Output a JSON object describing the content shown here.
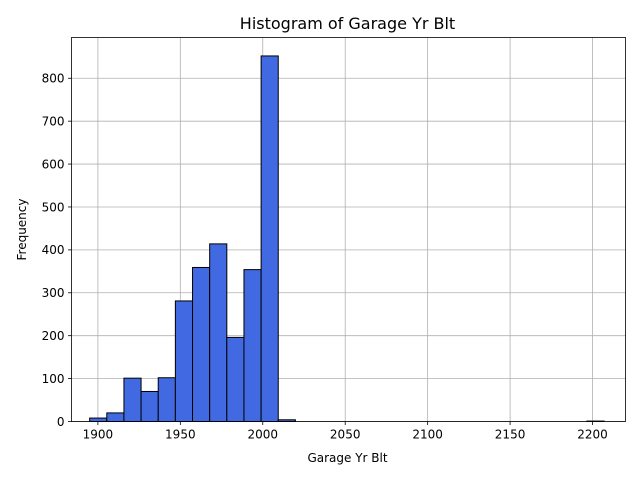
{
  "chart_data": {
    "type": "bar",
    "title": "Histogram of Garage Yr Blt",
    "xlabel": "Garage Yr Blt",
    "ylabel": "Frequency",
    "xlim": [
      1884,
      2220
    ],
    "ylim": [
      0,
      895
    ],
    "xticks": [
      1900,
      1950,
      2000,
      2050,
      2100,
      2150,
      2200
    ],
    "yticks": [
      0,
      100,
      200,
      300,
      400,
      500,
      600,
      700,
      800
    ],
    "grid": true,
    "bar_color": "#4169e1",
    "edge_color": "#000000",
    "bins": [
      {
        "x0": 1895.0,
        "x1": 1905.4,
        "count": 8
      },
      {
        "x0": 1905.4,
        "x1": 1915.8,
        "count": 20
      },
      {
        "x0": 1915.8,
        "x1": 1926.2,
        "count": 101
      },
      {
        "x0": 1926.2,
        "x1": 1936.6,
        "count": 70
      },
      {
        "x0": 1936.6,
        "x1": 1947.0,
        "count": 102
      },
      {
        "x0": 1947.0,
        "x1": 1957.4,
        "count": 281
      },
      {
        "x0": 1957.4,
        "x1": 1967.8,
        "count": 359
      },
      {
        "x0": 1967.8,
        "x1": 1978.2,
        "count": 414
      },
      {
        "x0": 1978.2,
        "x1": 1988.6,
        "count": 196
      },
      {
        "x0": 1988.6,
        "x1": 1999.0,
        "count": 354
      },
      {
        "x0": 1999.0,
        "x1": 2009.4,
        "count": 852
      },
      {
        "x0": 2009.4,
        "x1": 2019.8,
        "count": 4
      },
      {
        "x0": 2019.8,
        "x1": 2030.2,
        "count": 0
      },
      {
        "x0": 2030.2,
        "x1": 2040.6,
        "count": 0
      },
      {
        "x0": 2040.6,
        "x1": 2051.0,
        "count": 0
      },
      {
        "x0": 2051.0,
        "x1": 2061.4,
        "count": 0
      },
      {
        "x0": 2061.4,
        "x1": 2071.8,
        "count": 0
      },
      {
        "x0": 2071.8,
        "x1": 2082.2,
        "count": 0
      },
      {
        "x0": 2082.2,
        "x1": 2092.6,
        "count": 0
      },
      {
        "x0": 2092.6,
        "x1": 2103.0,
        "count": 0
      },
      {
        "x0": 2103.0,
        "x1": 2113.4,
        "count": 0
      },
      {
        "x0": 2113.4,
        "x1": 2123.8,
        "count": 0
      },
      {
        "x0": 2123.8,
        "x1": 2134.2,
        "count": 0
      },
      {
        "x0": 2134.2,
        "x1": 2144.6,
        "count": 0
      },
      {
        "x0": 2144.6,
        "x1": 2155.0,
        "count": 0
      },
      {
        "x0": 2155.0,
        "x1": 2165.4,
        "count": 0
      },
      {
        "x0": 2165.4,
        "x1": 2175.8,
        "count": 0
      },
      {
        "x0": 2175.8,
        "x1": 2186.2,
        "count": 0
      },
      {
        "x0": 2186.2,
        "x1": 2196.6,
        "count": 0
      },
      {
        "x0": 2196.6,
        "x1": 2207.0,
        "count": 1
      }
    ]
  }
}
